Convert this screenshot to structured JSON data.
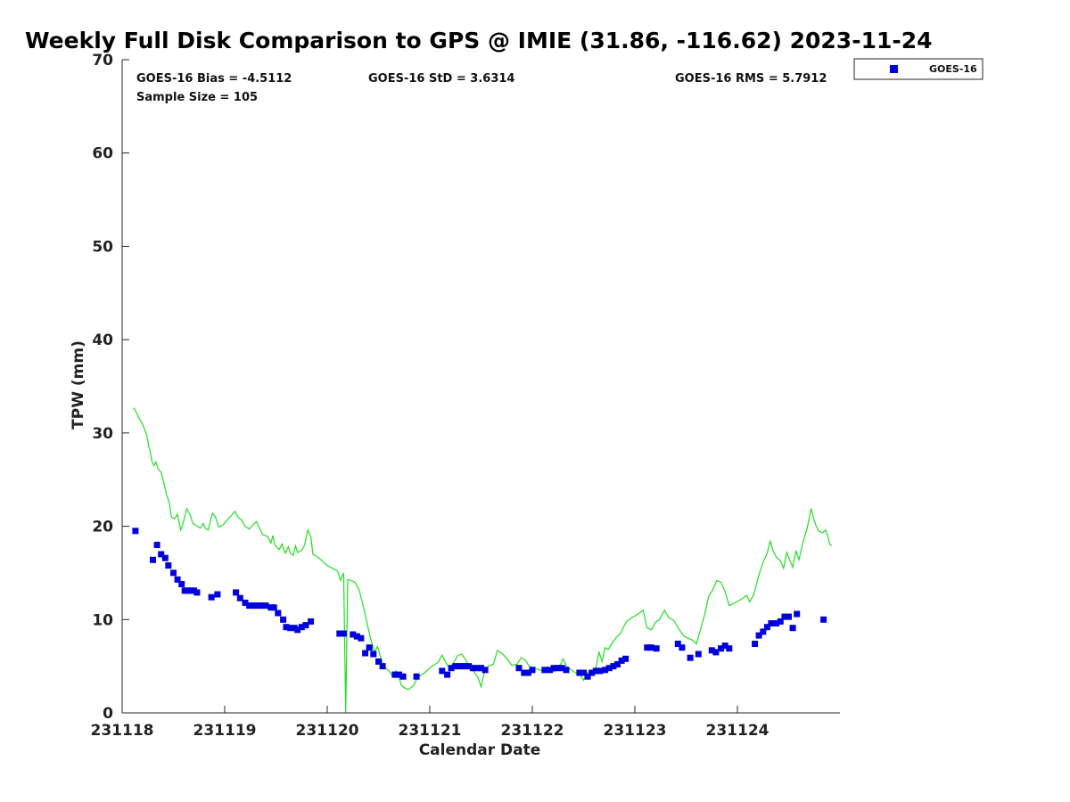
{
  "chart_data": {
    "type": "scatter",
    "title": "Weekly Full Disk Comparison to GPS @ IMIE (31.86, -116.62) 2023-11-24",
    "xlabel": "Calendar Date",
    "ylabel": "TPW (mm)",
    "xlim": [
      0,
      7
    ],
    "ylim": [
      0,
      70
    ],
    "x_ticks": [
      0,
      1,
      2,
      3,
      4,
      5,
      6
    ],
    "x_tick_labels": [
      "231118",
      "231119",
      "231120",
      "231121",
      "231122",
      "231123",
      "231124"
    ],
    "y_ticks": [
      0,
      10,
      20,
      30,
      40,
      50,
      60,
      70
    ],
    "grid": false,
    "legend_position": "top-right",
    "stats": {
      "bias": "GOES-16 Bias = -4.5112",
      "sample_size": "Sample Size = 105",
      "std": "GOES-16 StD = 3.6314",
      "rms": "GOES-16 RMS = 5.7912"
    },
    "colors": {
      "goes16": "#0000dd",
      "gps": "#22dd22"
    },
    "series": [
      {
        "name": "GOES-16",
        "marker": "square",
        "color": "#0000dd",
        "points": [
          [
            0.13,
            19.5
          ],
          [
            0.3,
            16.4
          ],
          [
            0.34,
            18.0
          ],
          [
            0.38,
            17.0
          ],
          [
            0.42,
            16.6
          ],
          [
            0.45,
            15.8
          ],
          [
            0.5,
            15.0
          ],
          [
            0.54,
            14.3
          ],
          [
            0.58,
            13.8
          ],
          [
            0.61,
            13.1
          ],
          [
            0.64,
            13.1
          ],
          [
            0.67,
            13.1
          ],
          [
            0.7,
            13.1
          ],
          [
            0.73,
            12.9
          ],
          [
            0.87,
            12.4
          ],
          [
            0.93,
            12.7
          ],
          [
            1.11,
            12.9
          ],
          [
            1.15,
            12.3
          ],
          [
            1.2,
            11.8
          ],
          [
            1.24,
            11.5
          ],
          [
            1.27,
            11.5
          ],
          [
            1.3,
            11.5
          ],
          [
            1.33,
            11.5
          ],
          [
            1.36,
            11.5
          ],
          [
            1.4,
            11.5
          ],
          [
            1.45,
            11.3
          ],
          [
            1.48,
            11.3
          ],
          [
            1.52,
            10.7
          ],
          [
            1.57,
            10.0
          ],
          [
            1.6,
            9.2
          ],
          [
            1.64,
            9.1
          ],
          [
            1.68,
            9.1
          ],
          [
            1.71,
            8.9
          ],
          [
            1.75,
            9.2
          ],
          [
            1.79,
            9.4
          ],
          [
            1.84,
            9.8
          ],
          [
            2.12,
            8.5
          ],
          [
            2.16,
            8.5
          ],
          [
            2.25,
            8.4
          ],
          [
            2.29,
            8.2
          ],
          [
            2.33,
            8.0
          ],
          [
            2.37,
            6.4
          ],
          [
            2.41,
            7.0
          ],
          [
            2.45,
            6.3
          ],
          [
            2.5,
            5.5
          ],
          [
            2.54,
            5.0
          ],
          [
            2.66,
            4.1
          ],
          [
            2.7,
            4.1
          ],
          [
            2.74,
            3.9
          ],
          [
            2.87,
            3.9
          ],
          [
            3.12,
            4.5
          ],
          [
            3.17,
            4.1
          ],
          [
            3.21,
            4.8
          ],
          [
            3.25,
            5.0
          ],
          [
            3.3,
            5.0
          ],
          [
            3.34,
            5.0
          ],
          [
            3.38,
            5.0
          ],
          [
            3.42,
            4.8
          ],
          [
            3.46,
            4.8
          ],
          [
            3.5,
            4.8
          ],
          [
            3.54,
            4.6
          ],
          [
            3.87,
            4.8
          ],
          [
            3.92,
            4.3
          ],
          [
            3.96,
            4.3
          ],
          [
            4.0,
            4.6
          ],
          [
            4.12,
            4.6
          ],
          [
            4.17,
            4.6
          ],
          [
            4.21,
            4.8
          ],
          [
            4.25,
            4.8
          ],
          [
            4.29,
            4.8
          ],
          [
            4.33,
            4.6
          ],
          [
            4.46,
            4.3
          ],
          [
            4.5,
            4.3
          ],
          [
            4.54,
            3.9
          ],
          [
            4.58,
            4.3
          ],
          [
            4.62,
            4.5
          ],
          [
            4.66,
            4.5
          ],
          [
            4.71,
            4.6
          ],
          [
            4.75,
            4.8
          ],
          [
            4.79,
            5.0
          ],
          [
            4.83,
            5.2
          ],
          [
            4.87,
            5.6
          ],
          [
            4.91,
            5.8
          ],
          [
            5.12,
            7.0
          ],
          [
            5.16,
            7.0
          ],
          [
            5.21,
            6.9
          ],
          [
            5.42,
            7.4
          ],
          [
            5.46,
            7.0
          ],
          [
            5.54,
            5.9
          ],
          [
            5.62,
            6.3
          ],
          [
            5.75,
            6.7
          ],
          [
            5.79,
            6.5
          ],
          [
            5.84,
            6.9
          ],
          [
            5.88,
            7.2
          ],
          [
            5.92,
            6.9
          ],
          [
            6.17,
            7.4
          ],
          [
            6.21,
            8.3
          ],
          [
            6.25,
            8.7
          ],
          [
            6.29,
            9.2
          ],
          [
            6.33,
            9.6
          ],
          [
            6.38,
            9.6
          ],
          [
            6.42,
            9.8
          ],
          [
            6.46,
            10.3
          ],
          [
            6.5,
            10.3
          ],
          [
            6.54,
            9.1
          ],
          [
            6.58,
            10.6
          ],
          [
            6.84,
            10.0
          ]
        ]
      },
      {
        "name": "GPS",
        "marker": "line",
        "color": "#22dd22",
        "points": [
          [
            0.11,
            32.7
          ],
          [
            0.13,
            32.4
          ],
          [
            0.16,
            31.7
          ],
          [
            0.2,
            30.9
          ],
          [
            0.24,
            29.8
          ],
          [
            0.26,
            28.5
          ],
          [
            0.27,
            28.2
          ],
          [
            0.29,
            27.0
          ],
          [
            0.31,
            26.5
          ],
          [
            0.33,
            26.9
          ],
          [
            0.35,
            26.1
          ],
          [
            0.38,
            25.8
          ],
          [
            0.41,
            24.5
          ],
          [
            0.43,
            23.5
          ],
          [
            0.46,
            22.5
          ],
          [
            0.48,
            21.0
          ],
          [
            0.51,
            20.8
          ],
          [
            0.54,
            21.3
          ],
          [
            0.57,
            19.6
          ],
          [
            0.59,
            20.1
          ],
          [
            0.63,
            21.9
          ],
          [
            0.66,
            21.3
          ],
          [
            0.69,
            20.3
          ],
          [
            0.72,
            20.1
          ],
          [
            0.76,
            19.8
          ],
          [
            0.79,
            20.3
          ],
          [
            0.81,
            19.8
          ],
          [
            0.84,
            19.6
          ],
          [
            0.88,
            21.4
          ],
          [
            0.91,
            21.0
          ],
          [
            0.94,
            19.9
          ],
          [
            0.98,
            20.1
          ],
          [
            1.02,
            20.6
          ],
          [
            1.06,
            21.1
          ],
          [
            1.1,
            21.6
          ],
          [
            1.13,
            21.0
          ],
          [
            1.16,
            20.7
          ],
          [
            1.2,
            20.0
          ],
          [
            1.24,
            19.7
          ],
          [
            1.28,
            20.2
          ],
          [
            1.31,
            20.5
          ],
          [
            1.34,
            19.8
          ],
          [
            1.37,
            19.1
          ],
          [
            1.42,
            18.9
          ],
          [
            1.45,
            18.2
          ],
          [
            1.47,
            19.0
          ],
          [
            1.49,
            18.0
          ],
          [
            1.53,
            17.5
          ],
          [
            1.56,
            18.1
          ],
          [
            1.59,
            17.1
          ],
          [
            1.62,
            17.8
          ],
          [
            1.64,
            17.1
          ],
          [
            1.67,
            16.9
          ],
          [
            1.69,
            17.9
          ],
          [
            1.71,
            17.2
          ],
          [
            1.75,
            17.4
          ],
          [
            1.78,
            18.0
          ],
          [
            1.81,
            19.6
          ],
          [
            1.84,
            18.9
          ],
          [
            1.86,
            17.0
          ],
          [
            1.92,
            16.6
          ],
          [
            2.0,
            15.8
          ],
          [
            2.1,
            15.2
          ],
          [
            2.13,
            14.2
          ],
          [
            2.16,
            15.0
          ],
          [
            2.18,
            0.0
          ],
          [
            2.2,
            14.3
          ],
          [
            2.23,
            14.2
          ],
          [
            2.27,
            14.0
          ],
          [
            2.31,
            13.2
          ],
          [
            2.35,
            11.5
          ],
          [
            2.39,
            9.5
          ],
          [
            2.42,
            8.1
          ],
          [
            2.46,
            6.5
          ],
          [
            2.49,
            7.1
          ],
          [
            2.52,
            6.0
          ],
          [
            2.55,
            5.0
          ],
          [
            2.6,
            4.5
          ],
          [
            2.63,
            4.1
          ],
          [
            2.67,
            4.5
          ],
          [
            2.7,
            3.9
          ],
          [
            2.72,
            3.0
          ],
          [
            2.75,
            2.7
          ],
          [
            2.79,
            2.5
          ],
          [
            2.84,
            2.9
          ],
          [
            2.88,
            3.8
          ],
          [
            2.95,
            4.3
          ],
          [
            3.02,
            5.0
          ],
          [
            3.08,
            5.4
          ],
          [
            3.12,
            6.2
          ],
          [
            3.15,
            5.5
          ],
          [
            3.19,
            4.8
          ],
          [
            3.23,
            5.3
          ],
          [
            3.27,
            6.1
          ],
          [
            3.31,
            6.3
          ],
          [
            3.35,
            5.7
          ],
          [
            3.39,
            4.8
          ],
          [
            3.43,
            4.4
          ],
          [
            3.47,
            3.8
          ],
          [
            3.5,
            2.8
          ],
          [
            3.53,
            4.2
          ],
          [
            3.57,
            5.0
          ],
          [
            3.62,
            5.2
          ],
          [
            3.66,
            6.7
          ],
          [
            3.71,
            6.3
          ],
          [
            3.76,
            5.7
          ],
          [
            3.8,
            5.1
          ],
          [
            3.85,
            5.2
          ],
          [
            3.89,
            5.9
          ],
          [
            3.93,
            5.7
          ],
          [
            3.97,
            5.0
          ],
          [
            4.01,
            4.8
          ],
          [
            4.05,
            4.7
          ],
          [
            4.1,
            4.5
          ],
          [
            4.15,
            4.6
          ],
          [
            4.2,
            4.4
          ],
          [
            4.25,
            4.6
          ],
          [
            4.3,
            5.8
          ],
          [
            4.34,
            4.9
          ],
          [
            4.38,
            4.6
          ],
          [
            4.42,
            4.3
          ],
          [
            4.46,
            4.2
          ],
          [
            4.5,
            3.5
          ],
          [
            4.53,
            4.3
          ],
          [
            4.57,
            4.5
          ],
          [
            4.61,
            4.3
          ],
          [
            4.65,
            6.5
          ],
          [
            4.68,
            5.5
          ],
          [
            4.71,
            7.0
          ],
          [
            4.74,
            6.8
          ],
          [
            4.78,
            7.5
          ],
          [
            4.82,
            8.1
          ],
          [
            4.86,
            8.5
          ],
          [
            4.89,
            9.2
          ],
          [
            4.92,
            9.8
          ],
          [
            4.97,
            10.2
          ],
          [
            5.03,
            10.6
          ],
          [
            5.08,
            11.0
          ],
          [
            5.12,
            9.1
          ],
          [
            5.16,
            8.9
          ],
          [
            5.2,
            9.7
          ],
          [
            5.24,
            10.0
          ],
          [
            5.29,
            11.0
          ],
          [
            5.33,
            10.2
          ],
          [
            5.38,
            9.9
          ],
          [
            5.43,
            9.0
          ],
          [
            5.48,
            8.2
          ],
          [
            5.52,
            8.0
          ],
          [
            5.56,
            7.8
          ],
          [
            5.6,
            7.4
          ],
          [
            5.64,
            8.9
          ],
          [
            5.68,
            10.5
          ],
          [
            5.72,
            12.5
          ],
          [
            5.76,
            13.2
          ],
          [
            5.8,
            14.2
          ],
          [
            5.84,
            14.0
          ],
          [
            5.88,
            13.0
          ],
          [
            5.92,
            11.5
          ],
          [
            5.98,
            11.8
          ],
          [
            6.04,
            12.2
          ],
          [
            6.09,
            12.6
          ],
          [
            6.12,
            11.9
          ],
          [
            6.16,
            12.7
          ],
          [
            6.2,
            14.4
          ],
          [
            6.23,
            15.5
          ],
          [
            6.26,
            16.4
          ],
          [
            6.29,
            17.1
          ],
          [
            6.32,
            18.4
          ],
          [
            6.35,
            17.3
          ],
          [
            6.38,
            16.7
          ],
          [
            6.42,
            16.3
          ],
          [
            6.45,
            15.5
          ],
          [
            6.48,
            17.2
          ],
          [
            6.51,
            16.4
          ],
          [
            6.54,
            15.6
          ],
          [
            6.57,
            17.4
          ],
          [
            6.6,
            16.4
          ],
          [
            6.64,
            18.3
          ],
          [
            6.68,
            19.8
          ],
          [
            6.72,
            21.9
          ],
          [
            6.75,
            20.5
          ],
          [
            6.79,
            19.5
          ],
          [
            6.83,
            19.3
          ],
          [
            6.86,
            19.6
          ],
          [
            6.88,
            19.0
          ],
          [
            6.9,
            18.1
          ],
          [
            6.92,
            17.9
          ]
        ]
      }
    ]
  }
}
